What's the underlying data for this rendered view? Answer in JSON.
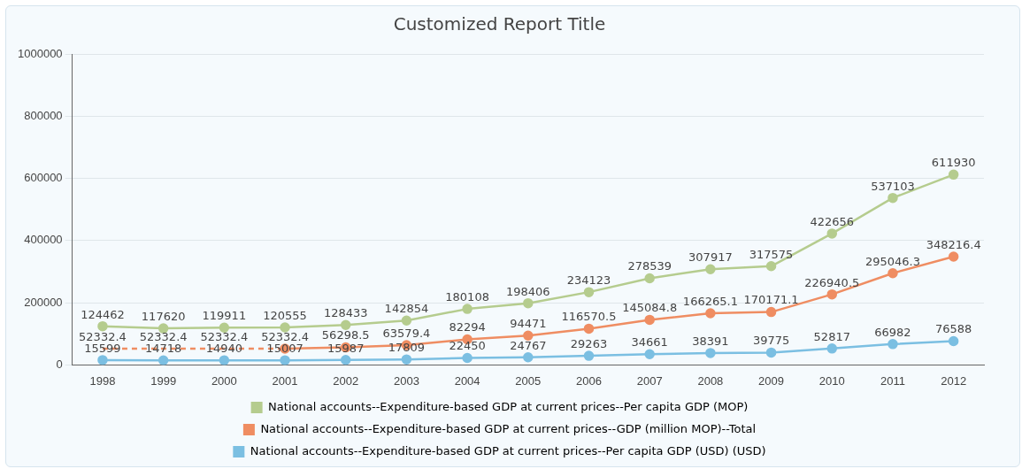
{
  "chart_data": {
    "type": "line",
    "title": "Customized Report Title",
    "categories": [
      "1998",
      "1999",
      "2000",
      "2001",
      "2002",
      "2003",
      "2004",
      "2005",
      "2006",
      "2007",
      "2008",
      "2009",
      "2010",
      "2011",
      "2012"
    ],
    "series": [
      {
        "name": "National accounts--Expenditure-based GDP at current prices--Per capita GDP (MOP)",
        "color": "#b5cc8e",
        "values": [
          124462,
          117620,
          119911,
          120555,
          128433,
          142854,
          180108,
          198406,
          234123,
          278539,
          307917,
          317575,
          422656,
          537103,
          611930
        ]
      },
      {
        "name": "National accounts--Expenditure-based GDP at current prices--GDP (million MOP)--Total",
        "color": "#ef8d62",
        "values": [
          null,
          null,
          null,
          52332.4,
          56298.5,
          63579.4,
          82294,
          94471,
          116570.5,
          145084.8,
          166265.1,
          170171.1,
          226940.5,
          295046.3,
          348216.4
        ]
      },
      {
        "name": "National accounts--Expenditure-based GDP at current prices--Per capita GDP (USD) (USD)",
        "color": "#7bbfe2",
        "values": [
          15599,
          14718,
          14940,
          15007,
          15987,
          17809,
          22450,
          24767,
          29263,
          34661,
          38391,
          39775,
          52817,
          66982,
          76588
        ]
      },
      {
        "color": "#ef8d62",
        "values": [
          52332.4,
          52332.4,
          52332.4,
          52332.4,
          null,
          null,
          null,
          null,
          null,
          null,
          null,
          null,
          null,
          null,
          null
        ],
        "value_labels": [
          "52332.4",
          "52332.4",
          "52332.4",
          null,
          null,
          null,
          null,
          null,
          null,
          null,
          null,
          null,
          null,
          null,
          null
        ],
        "line_style": "dashed",
        "marker": "none"
      }
    ],
    "ylim": [
      0,
      1000000
    ],
    "yticks": [
      0,
      200000,
      400000,
      600000,
      800000,
      1000000
    ],
    "grid": "y",
    "legend": "bottom",
    "marker": "circle",
    "line_style": "solid",
    "data_labels": true
  }
}
